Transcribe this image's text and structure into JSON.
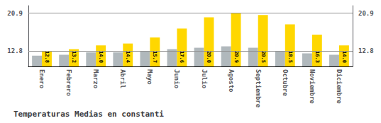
{
  "chart_data": {
    "type": "bar",
    "title": "Temperaturas Medias en constanti",
    "categories": [
      "Enero",
      "Febrero",
      "Marzo",
      "Abril",
      "Mayo",
      "Junio",
      "Julio",
      "Agosto",
      "Septiembre",
      "Octubre",
      "Noviembre",
      "Diciembre"
    ],
    "series": [
      {
        "color": "#B0B8BC",
        "values": [
          11.8,
          12.0,
          12.5,
          12.5,
          12.8,
          13.2,
          13.5,
          13.8,
          13.5,
          12.8,
          12.3,
          12.0
        ]
      },
      {
        "color": "#FFD700",
        "values": [
          12.8,
          13.2,
          14.0,
          14.4,
          15.7,
          17.6,
          20.0,
          20.9,
          20.5,
          18.5,
          16.3,
          14.0
        ],
        "data_labels": true,
        "value_labels": [
          "12.8",
          "13.2",
          "14.0",
          "14.4",
          "15.7",
          "17.6",
          "20.0",
          "20.9",
          "20.5",
          "18.5",
          "16.3",
          "14.0"
        ]
      }
    ],
    "ylim": [
      9.5,
      22.5
    ],
    "yticks": [
      12.8,
      20.9
    ],
    "y2lim": [
      9.5,
      22.5
    ],
    "y2ticks": [
      12.8,
      20.9
    ],
    "grid": true
  }
}
